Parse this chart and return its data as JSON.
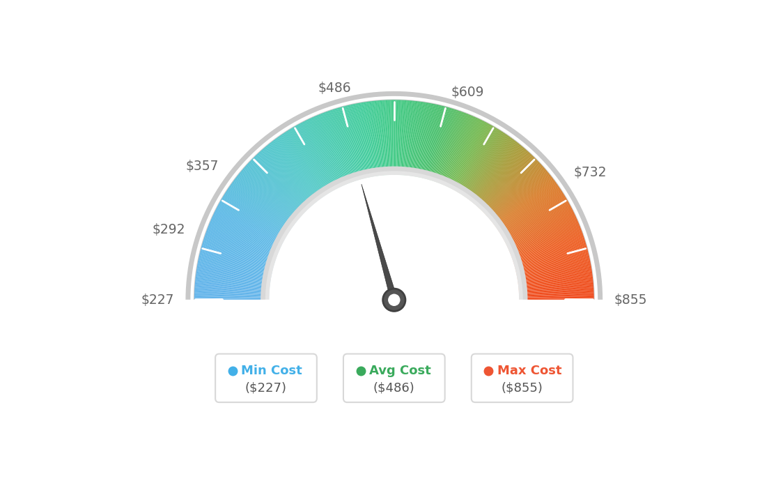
{
  "min_val": 227,
  "max_val": 855,
  "avg_val": 486,
  "label_values": [
    227,
    292,
    357,
    486,
    609,
    732,
    855
  ],
  "legend_items": [
    {
      "label": "Min Cost",
      "value": "($227)",
      "color": "#42b0e8"
    },
    {
      "label": "Avg Cost",
      "value": "($486)",
      "color": "#3aaa5c"
    },
    {
      "label": "Max Cost",
      "value": "($855)",
      "color": "#ee5533"
    }
  ],
  "background_color": "#ffffff",
  "tick_count": 13,
  "colors_gradient": [
    [
      0.0,
      [
        0.38,
        0.7,
        0.92
      ]
    ],
    [
      0.15,
      [
        0.35,
        0.72,
        0.9
      ]
    ],
    [
      0.3,
      [
        0.3,
        0.78,
        0.78
      ]
    ],
    [
      0.45,
      [
        0.25,
        0.8,
        0.6
      ]
    ],
    [
      0.5,
      [
        0.25,
        0.79,
        0.52
      ]
    ],
    [
      0.58,
      [
        0.28,
        0.75,
        0.42
      ]
    ],
    [
      0.65,
      [
        0.45,
        0.72,
        0.3
      ]
    ],
    [
      0.72,
      [
        0.65,
        0.6,
        0.2
      ]
    ],
    [
      0.8,
      [
        0.85,
        0.48,
        0.15
      ]
    ],
    [
      0.9,
      [
        0.93,
        0.36,
        0.12
      ]
    ],
    [
      1.0,
      [
        0.94,
        0.28,
        0.1
      ]
    ]
  ]
}
